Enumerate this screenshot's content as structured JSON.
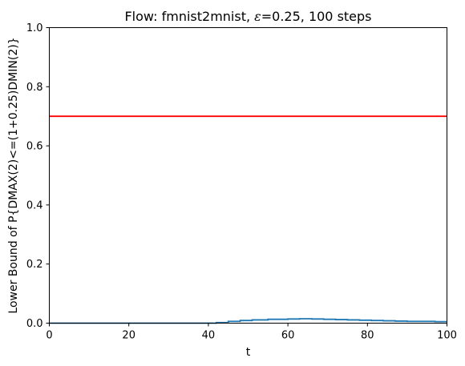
{
  "chart_data": {
    "type": "line",
    "title_prefix": "Flow: fmnist2mnist, ",
    "title_symbol": "ε",
    "title_suffix": "=0.25, 100 steps",
    "xlabel": "t",
    "ylabel": "Lower Bound of P{DMAX(2)<=(1+0.25)DMIN(2)}",
    "xlim": [
      0,
      100
    ],
    "ylim": [
      0,
      1
    ],
    "x_ticks": [
      "0",
      "20",
      "40",
      "60",
      "80",
      "100"
    ],
    "y_ticks": [
      "0.0",
      "0.2",
      "0.4",
      "0.6",
      "0.8",
      "1.0"
    ],
    "grid": false,
    "series": [
      {
        "color": "#1f77b4",
        "step": true,
        "points": [
          [
            0,
            0.0
          ],
          [
            40,
            0.0
          ],
          [
            42,
            0.002
          ],
          [
            45,
            0.006
          ],
          [
            48,
            0.009
          ],
          [
            51,
            0.011
          ],
          [
            55,
            0.013
          ],
          [
            60,
            0.014
          ],
          [
            63,
            0.015
          ],
          [
            66,
            0.014
          ],
          [
            69,
            0.013
          ],
          [
            72,
            0.012
          ],
          [
            75,
            0.011
          ],
          [
            78,
            0.01
          ],
          [
            81,
            0.009
          ],
          [
            84,
            0.008
          ],
          [
            87,
            0.007
          ],
          [
            90,
            0.006
          ],
          [
            94,
            0.006
          ],
          [
            97,
            0.005
          ],
          [
            100,
            0.005
          ]
        ]
      }
    ],
    "hlines": [
      {
        "y": 0.7,
        "color": "#ff0000"
      }
    ]
  }
}
